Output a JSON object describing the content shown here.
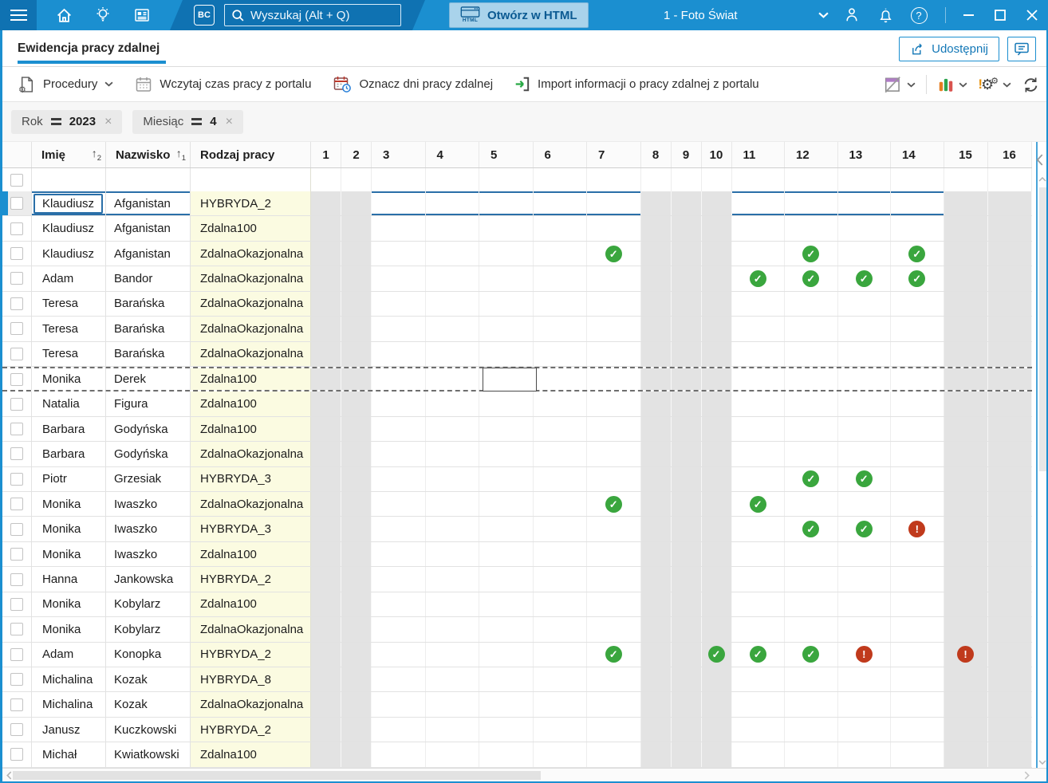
{
  "topbar": {
    "bc_label": "BC",
    "search_placeholder": "Wyszukaj (Alt + Q)",
    "open_html_label": "Otwórz w HTML",
    "html_icon_label": "HTML",
    "company_title": "1 - Foto Świat"
  },
  "tabbar": {
    "tab_label": "Ewidencja pracy zdalnej",
    "share_label": "Udostępnij"
  },
  "toolbar": {
    "procedury_label": "Procedury",
    "wczytaj_label": "Wczytaj czas pracy z portalu",
    "oznacz_label": "Oznacz dni pracy zdalnej",
    "import_label": "Import informacji o pracy zdalnej z portalu"
  },
  "filters": [
    {
      "label": "Rok",
      "value": "2023"
    },
    {
      "label": "Miesiąc",
      "value": "4"
    }
  ],
  "icons": {
    "sort_arrow": "↑",
    "check_glyph": "✓",
    "warn_glyph": "!",
    "gear_glyph": "⚙"
  },
  "grid": {
    "columns": {
      "imie": "Imię",
      "imie_sort_order": "2",
      "nazwisko": "Nazwisko",
      "nazwisko_sort_order": "1",
      "rodzaj": "Rodzaj pracy"
    },
    "days": [
      {
        "n": 1,
        "weekend": true
      },
      {
        "n": 2,
        "weekend": true
      },
      {
        "n": 3,
        "weekend": false
      },
      {
        "n": 4,
        "weekend": false
      },
      {
        "n": 5,
        "weekend": false
      },
      {
        "n": 6,
        "weekend": false
      },
      {
        "n": 7,
        "weekend": false
      },
      {
        "n": 8,
        "weekend": true
      },
      {
        "n": 9,
        "weekend": true
      },
      {
        "n": 10,
        "weekend": true
      },
      {
        "n": 11,
        "weekend": false
      },
      {
        "n": 12,
        "weekend": false
      },
      {
        "n": 13,
        "weekend": false
      },
      {
        "n": 14,
        "weekend": false
      },
      {
        "n": 15,
        "weekend": true
      },
      {
        "n": 16,
        "weekend": true
      }
    ],
    "rows": [
      {
        "imie": "Klaudiusz",
        "nazwisko": "Afganistan",
        "rodzaj": "HYBRYDA_2",
        "selected": true,
        "marks": {}
      },
      {
        "imie": "Klaudiusz",
        "nazwisko": "Afganistan",
        "rodzaj": "Zdalna100",
        "marks": {}
      },
      {
        "imie": "Klaudiusz",
        "nazwisko": "Afganistan",
        "rodzaj": "ZdalnaOkazjonalna",
        "marks": {
          "7": "ok",
          "12": "ok",
          "14": "ok"
        }
      },
      {
        "imie": "Adam",
        "nazwisko": "Bandor",
        "rodzaj": "ZdalnaOkazjonalna",
        "marks": {
          "11": "ok",
          "12": "ok",
          "13": "ok",
          "14": "ok"
        }
      },
      {
        "imie": "Teresa",
        "nazwisko": "Barańska",
        "rodzaj": "ZdalnaOkazjonalna",
        "marks": {}
      },
      {
        "imie": "Teresa",
        "nazwisko": "Barańska",
        "rodzaj": "ZdalnaOkazjonalna",
        "marks": {}
      },
      {
        "imie": "Teresa",
        "nazwisko": "Barańska",
        "rodzaj": "ZdalnaOkazjonalna",
        "marks": {}
      },
      {
        "imie": "Monika",
        "nazwisko": "Derek",
        "rodzaj": "Zdalna100",
        "dashed": true,
        "marks": {}
      },
      {
        "imie": "Natalia",
        "nazwisko": "Figura",
        "rodzaj": "Zdalna100",
        "marks": {}
      },
      {
        "imie": "Barbara",
        "nazwisko": "Godyńska",
        "rodzaj": "Zdalna100",
        "marks": {}
      },
      {
        "imie": "Barbara",
        "nazwisko": "Godyńska",
        "rodzaj": "ZdalnaOkazjonalna",
        "marks": {}
      },
      {
        "imie": "Piotr",
        "nazwisko": "Grzesiak",
        "rodzaj": "HYBRYDA_3",
        "marks": {
          "12": "ok",
          "13": "ok"
        }
      },
      {
        "imie": "Monika",
        "nazwisko": "Iwaszko",
        "rodzaj": "ZdalnaOkazjonalna",
        "marks": {
          "7": "ok",
          "11": "ok"
        }
      },
      {
        "imie": "Monika",
        "nazwisko": "Iwaszko",
        "rodzaj": "HYBRYDA_3",
        "marks": {
          "12": "ok",
          "13": "ok",
          "14": "warn"
        }
      },
      {
        "imie": "Monika",
        "nazwisko": "Iwaszko",
        "rodzaj": "Zdalna100",
        "marks": {}
      },
      {
        "imie": "Hanna",
        "nazwisko": "Jankowska",
        "rodzaj": "HYBRYDA_2",
        "marks": {}
      },
      {
        "imie": "Monika",
        "nazwisko": "Kobylarz",
        "rodzaj": "Zdalna100",
        "marks": {}
      },
      {
        "imie": "Monika",
        "nazwisko": "Kobylarz",
        "rodzaj": "ZdalnaOkazjonalna",
        "marks": {}
      },
      {
        "imie": "Adam",
        "nazwisko": "Konopka",
        "rodzaj": "HYBRYDA_2",
        "marks": {
          "7": "ok",
          "10": "ok",
          "11": "ok",
          "12": "ok",
          "13": "warn",
          "15": "warn"
        }
      },
      {
        "imie": "Michalina",
        "nazwisko": "Kozak",
        "rodzaj": "HYBRYDA_8",
        "marks": {}
      },
      {
        "imie": "Michalina",
        "nazwisko": "Kozak",
        "rodzaj": "ZdalnaOkazjonalna",
        "marks": {}
      },
      {
        "imie": "Janusz",
        "nazwisko": "Kuczkowski",
        "rodzaj": "HYBRYDA_2",
        "marks": {}
      },
      {
        "imie": "Michał",
        "nazwisko": "Kwiatkowski",
        "rodzaj": "Zdalna100",
        "marks": {}
      }
    ]
  },
  "colors": {
    "accent": "#1b8fd0",
    "topbar_dark": "#0f72b2",
    "selection": "#2a6fa8",
    "ok_green": "#3aa63e",
    "warn_red": "#c03a1c",
    "rodzaj_bg": "#fbfbe1",
    "weekend_bg": "#e3e3e3",
    "open_html_bg": "#a9d3eb",
    "open_html_text": "#0b5a92"
  }
}
